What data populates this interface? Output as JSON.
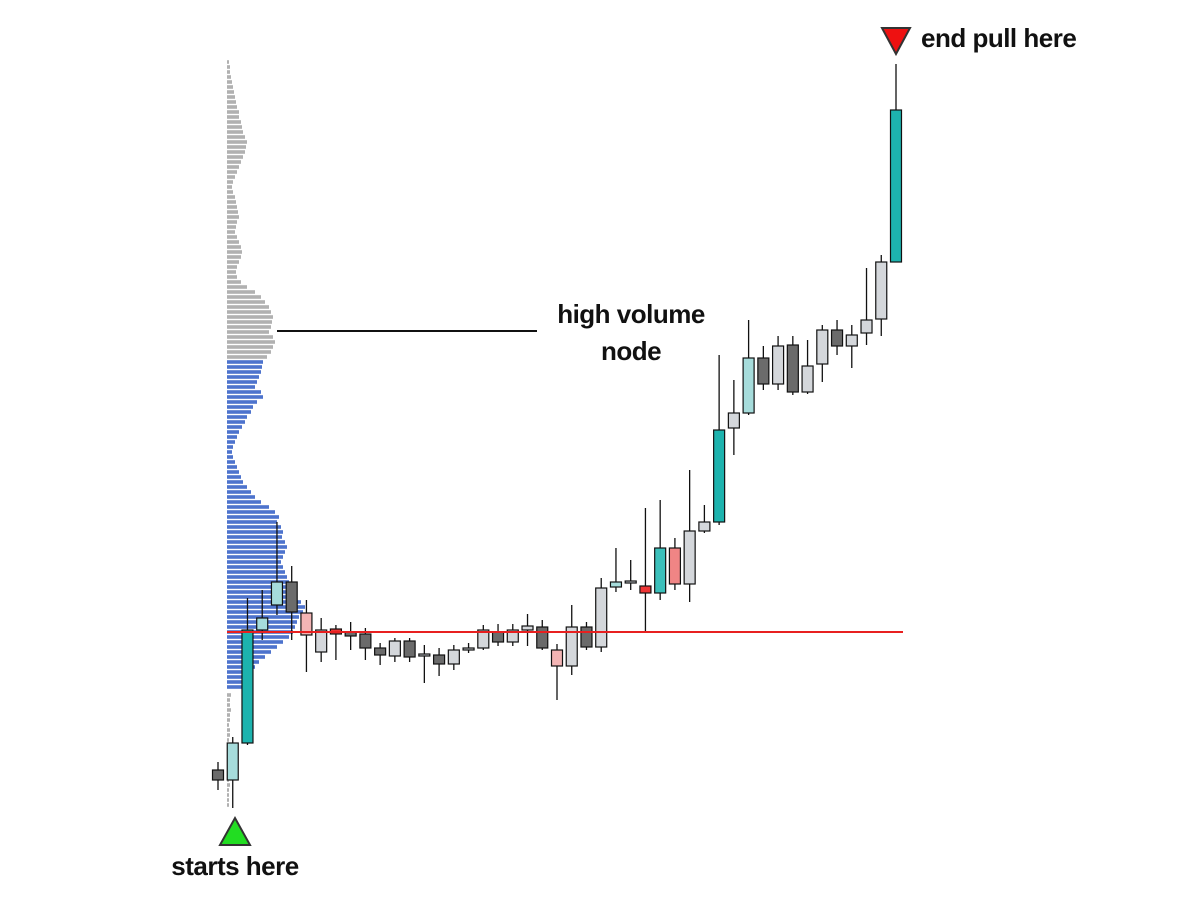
{
  "chart_data": {
    "type": "candlestick",
    "ylim": [
      0,
      760
    ],
    "open": [
      50,
      40,
      77,
      190,
      215,
      238,
      207,
      168,
      191,
      188,
      186,
      172,
      164,
      179,
      164,
      165,
      156,
      170,
      172,
      188,
      178,
      190,
      193,
      170,
      154,
      193,
      173,
      233,
      237,
      234,
      227,
      272,
      236,
      289,
      298,
      392,
      407,
      462,
      436,
      475,
      428,
      456,
      490,
      474,
      487,
      501,
      558
    ],
    "high": [
      58,
      83,
      222,
      230,
      298,
      254,
      220,
      202,
      195,
      198,
      192,
      177,
      182,
      182,
      175,
      172,
      175,
      177,
      195,
      196,
      196,
      206,
      200,
      176,
      215,
      198,
      242,
      272,
      260,
      312,
      320,
      282,
      350,
      315,
      465,
      440,
      500,
      474,
      484,
      484,
      480,
      495,
      500,
      495,
      552,
      565,
      756
    ],
    "low": [
      30,
      12,
      75,
      180,
      205,
      180,
      148,
      158,
      160,
      170,
      160,
      155,
      158,
      158,
      137,
      144,
      150,
      167,
      170,
      174,
      174,
      174,
      170,
      120,
      145,
      170,
      168,
      228,
      230,
      188,
      220,
      230,
      218,
      287,
      295,
      365,
      405,
      430,
      430,
      425,
      426,
      438,
      465,
      452,
      475,
      484,
      558
    ],
    "close": [
      40,
      77,
      190,
      202,
      238,
      208,
      185,
      190,
      186,
      184,
      172,
      165,
      179,
      163,
      166,
      156,
      170,
      172,
      190,
      178,
      190,
      194,
      172,
      154,
      193,
      173,
      232,
      238,
      239,
      227,
      272,
      236,
      289,
      298,
      390,
      407,
      462,
      436,
      474,
      428,
      454,
      490,
      474,
      485,
      500,
      558,
      710
    ],
    "colors": [
      "#6b6b6b",
      "#a6dcdb",
      "#1db3ae",
      "#a6dcdb",
      "#a6dcdb",
      "#6b6b6b",
      "#f3b4b4",
      "#d4d7db",
      "#ee3535",
      "#6b6b6b",
      "#6b6b6b",
      "#6b6b6b",
      "#d4d7db",
      "#6b6b6b",
      "#d4d7db",
      "#6b6b6b",
      "#d4d7db",
      "#d4d7db",
      "#d4d7db",
      "#6b6b6b",
      "#d4d7db",
      "#d4d7db",
      "#6b6b6b",
      "#f3b4b4",
      "#d4d7db",
      "#6b6b6b",
      "#d4d7db",
      "#a6dcdb",
      "#d4d7db",
      "#ee3535",
      "#3cc0bb",
      "#f08585",
      "#d4d7db",
      "#d4d7db",
      "#1db3ae",
      "#d4d7db",
      "#a6dcdb",
      "#6b6b6b",
      "#d4d7db",
      "#6b6b6b",
      "#d4d7db",
      "#d4d7db",
      "#6b6b6b",
      "#d4d7db",
      "#d4d7db",
      "#d4d7db",
      "#1db3ae"
    ],
    "level_line": {
      "value": 188,
      "color": "#e82020"
    },
    "profile": {
      "step": 5,
      "xlim": [
        0,
        100
      ],
      "segments": [
        {
          "start": 758,
          "color": "#a9a9a9",
          "values": [
            2,
            3,
            3,
            4,
            5,
            6,
            7,
            8,
            9,
            10,
            12,
            12,
            14,
            15,
            16,
            18,
            20,
            19,
            18,
            16,
            14,
            12,
            10,
            8,
            6,
            5,
            6,
            8,
            9,
            10,
            11,
            12,
            10,
            9,
            8,
            10,
            12,
            14,
            15,
            14,
            12,
            10,
            9,
            10,
            14,
            20,
            28,
            34,
            38,
            42,
            44,
            46,
            45,
            44,
            42,
            46,
            48,
            46,
            44,
            40
          ]
        },
        {
          "start": 458,
          "color": "#3a64c8",
          "values": [
            36,
            35,
            34,
            32,
            30,
            28,
            34,
            36,
            30,
            26,
            24,
            20,
            18,
            15,
            12,
            10,
            8,
            6,
            5,
            6,
            8,
            10,
            12,
            14,
            16,
            20,
            24,
            28,
            34,
            42,
            48,
            52,
            50,
            54,
            56,
            55,
            58,
            60,
            58,
            56,
            54,
            56,
            58,
            60,
            62,
            64,
            66,
            70,
            74,
            78,
            76,
            72,
            70,
            68,
            66,
            62,
            56,
            50,
            44,
            38,
            32,
            28,
            24,
            20,
            18,
            16
          ]
        },
        {
          "start": 125,
          "color": "#a9a9a9",
          "values": [
            4,
            3,
            3,
            4,
            3,
            3,
            2,
            3,
            3,
            2,
            3,
            2,
            3,
            2,
            2,
            3,
            2,
            2,
            3,
            2,
            2,
            2,
            2
          ]
        }
      ]
    },
    "annotations": {
      "start": "starts here",
      "node": [
        "high volume",
        "node"
      ],
      "end": "end pull here"
    }
  }
}
